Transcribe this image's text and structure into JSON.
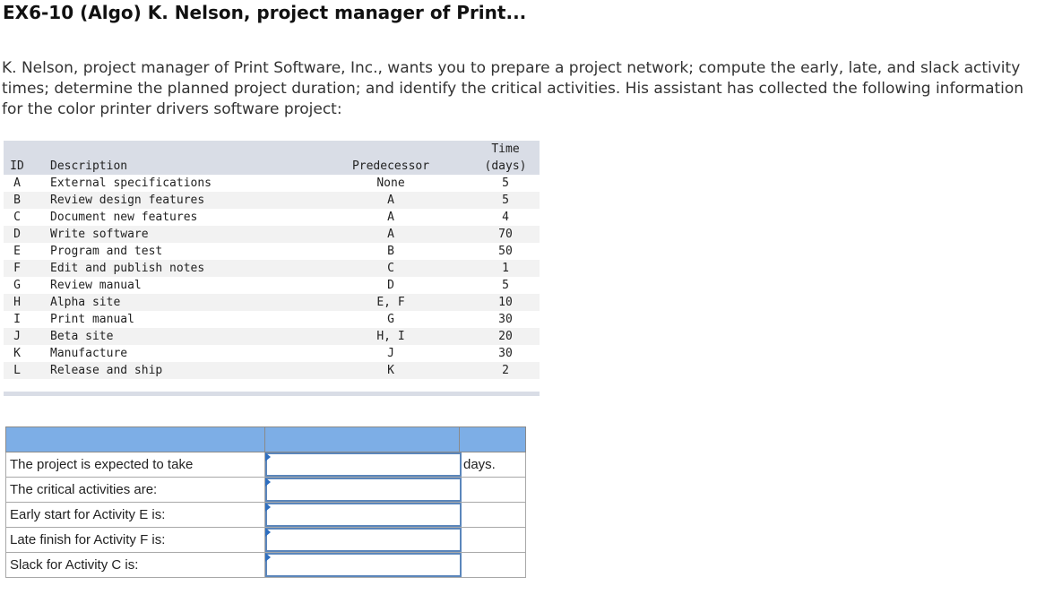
{
  "title": "EX6-10 (Algo) K. Nelson, project manager of Print...",
  "intro": "K. Nelson, project manager of Print Software, Inc., wants you to prepare a project network; compute the early, late, and slack activity times; determine the planned project duration; and identify the critical activities. His assistant has collected the following information for the color printer drivers software project:",
  "table": {
    "headers": {
      "id": "ID",
      "description": "Description",
      "predecessor": "Predecessor",
      "time_top": "Time",
      "time_bottom": "(days)"
    },
    "rows": [
      {
        "id": "A",
        "description": "External specifications",
        "predecessor": "None",
        "time": "5"
      },
      {
        "id": "B",
        "description": "Review design features",
        "predecessor": "A",
        "time": "5"
      },
      {
        "id": "C",
        "description": "Document new features",
        "predecessor": "A",
        "time": "4"
      },
      {
        "id": "D",
        "description": "Write software",
        "predecessor": "A",
        "time": "70"
      },
      {
        "id": "E",
        "description": "Program and test",
        "predecessor": "B",
        "time": "50"
      },
      {
        "id": "F",
        "description": "Edit and publish notes",
        "predecessor": "C",
        "time": "1"
      },
      {
        "id": "G",
        "description": "Review manual",
        "predecessor": "D",
        "time": "5"
      },
      {
        "id": "H",
        "description": "Alpha site",
        "predecessor": "E, F",
        "time": "10"
      },
      {
        "id": "I",
        "description": "Print manual",
        "predecessor": "G",
        "time": "30"
      },
      {
        "id": "J",
        "description": "Beta site",
        "predecessor": "H, I",
        "time": "20"
      },
      {
        "id": "K",
        "description": "Manufacture",
        "predecessor": "J",
        "time": "30"
      },
      {
        "id": "L",
        "description": "Release and ship",
        "predecessor": "K",
        "time": "2"
      }
    ]
  },
  "answers": {
    "rows": [
      {
        "label": "The project is expected to take",
        "value": "",
        "unit": "days."
      },
      {
        "label": "The critical activities are:",
        "value": "",
        "unit": ""
      },
      {
        "label": "Early start for Activity E is:",
        "value": "",
        "unit": ""
      },
      {
        "label": "Late finish for Activity F is:",
        "value": "",
        "unit": ""
      },
      {
        "label": "Slack for Activity C is:",
        "value": "",
        "unit": ""
      }
    ]
  }
}
